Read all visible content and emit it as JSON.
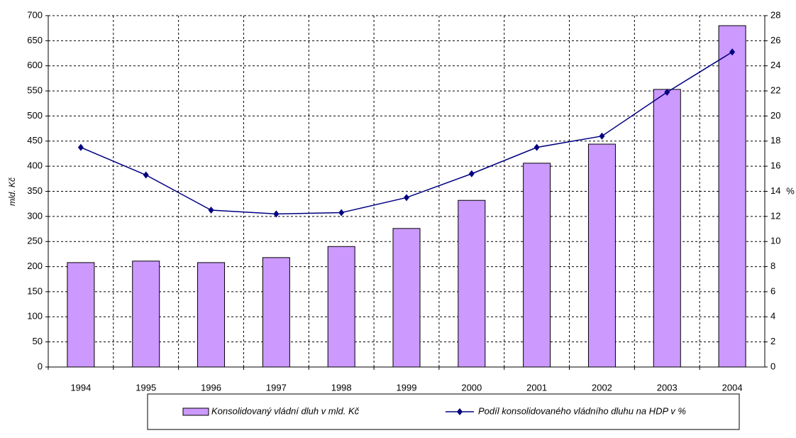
{
  "chart_data": {
    "type": "bar-line",
    "y_label": "mld. Kč",
    "y2_label": "%",
    "categories": [
      "1994",
      "1995",
      "1996",
      "1997",
      "1998",
      "1999",
      "2000",
      "2001",
      "2002",
      "2003",
      "2004"
    ],
    "series": [
      {
        "name": "Konsolidovaný vládní dluh v mld. Kč",
        "type": "bar",
        "color": "#cc99ff",
        "axis": "y",
        "values": [
          208,
          211,
          208,
          218,
          240,
          276,
          332,
          406,
          444,
          553,
          680
        ]
      },
      {
        "name": "Podíl konsolidovaného vládního dluhu na HDP v %",
        "type": "line",
        "color": "#000080",
        "axis": "y2",
        "values": [
          17.5,
          15.3,
          12.5,
          12.2,
          12.3,
          13.5,
          15.4,
          17.5,
          18.4,
          21.9,
          25.1
        ]
      }
    ],
    "ylim": [
      0,
      700
    ],
    "yticks": [
      0,
      50,
      100,
      150,
      200,
      250,
      300,
      350,
      400,
      450,
      500,
      550,
      600,
      650,
      700
    ],
    "y2lim": [
      0,
      28
    ],
    "y2ticks": [
      0,
      2,
      4,
      6,
      8,
      10,
      12,
      14,
      16,
      18,
      20,
      22,
      24,
      26,
      28
    ],
    "grid": true,
    "legend": "bottom"
  }
}
